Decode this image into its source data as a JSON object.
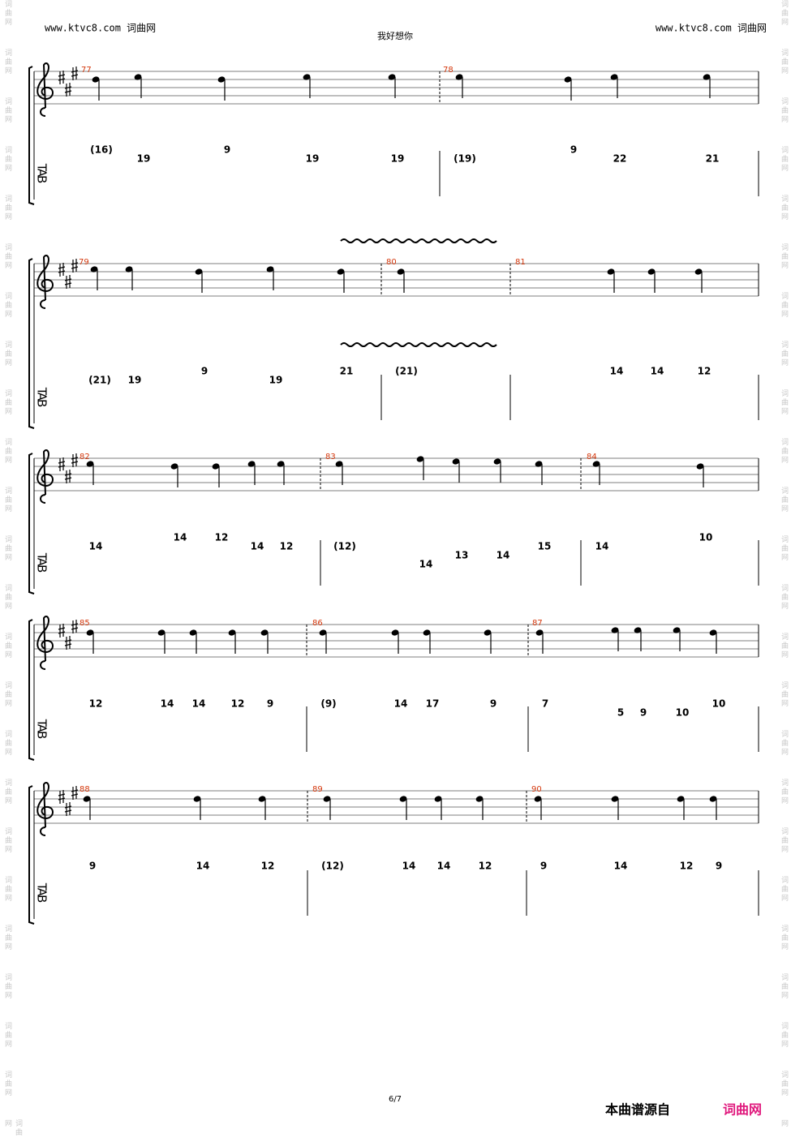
{
  "header": {
    "left": "www.ktvc8.com 词曲网",
    "right": "www.ktvc8.com 词曲网",
    "title": "我好想你"
  },
  "watermark": "词曲网",
  "tab_label": "TAB",
  "systems": [
    {
      "measures": [
        {
          "number": "77",
          "tab": [
            "(16)",
            "19",
            "9",
            "19",
            "19"
          ]
        },
        {
          "number": "78",
          "tab": [
            "(19)",
            "9",
            "22",
            "21"
          ]
        }
      ]
    },
    {
      "measures": [
        {
          "number": "79",
          "tab": [
            "(21)",
            "19",
            "9",
            "19",
            "21"
          ]
        },
        {
          "number": "80",
          "tab": [
            "(21)"
          ]
        },
        {
          "number": "81",
          "tab": [
            "14",
            "14",
            "12"
          ]
        }
      ]
    },
    {
      "measures": [
        {
          "number": "82",
          "tab": [
            "14",
            "14",
            "12",
            "14",
            "12"
          ]
        },
        {
          "number": "83",
          "tab": [
            "(12)",
            "14",
            "13",
            "14",
            "15"
          ]
        },
        {
          "number": "84",
          "tab": [
            "14",
            "10"
          ]
        }
      ]
    },
    {
      "measures": [
        {
          "number": "85",
          "tab": [
            "12",
            "14",
            "14",
            "12",
            "9"
          ]
        },
        {
          "number": "86",
          "tab": [
            "(9)",
            "14",
            "17",
            "9"
          ]
        },
        {
          "number": "87",
          "tab": [
            "7",
            "5",
            "9",
            "10",
            "10"
          ]
        }
      ]
    },
    {
      "measures": [
        {
          "number": "88",
          "tab": [
            "9",
            "14",
            "12"
          ]
        },
        {
          "number": "89",
          "tab": [
            "(12)",
            "14",
            "14",
            "12"
          ]
        },
        {
          "number": "90",
          "tab": [
            "9",
            "14",
            "12",
            "9"
          ]
        }
      ]
    }
  ],
  "footer": {
    "page": "6/7",
    "source": "本曲谱源自",
    "site": "词曲网"
  }
}
